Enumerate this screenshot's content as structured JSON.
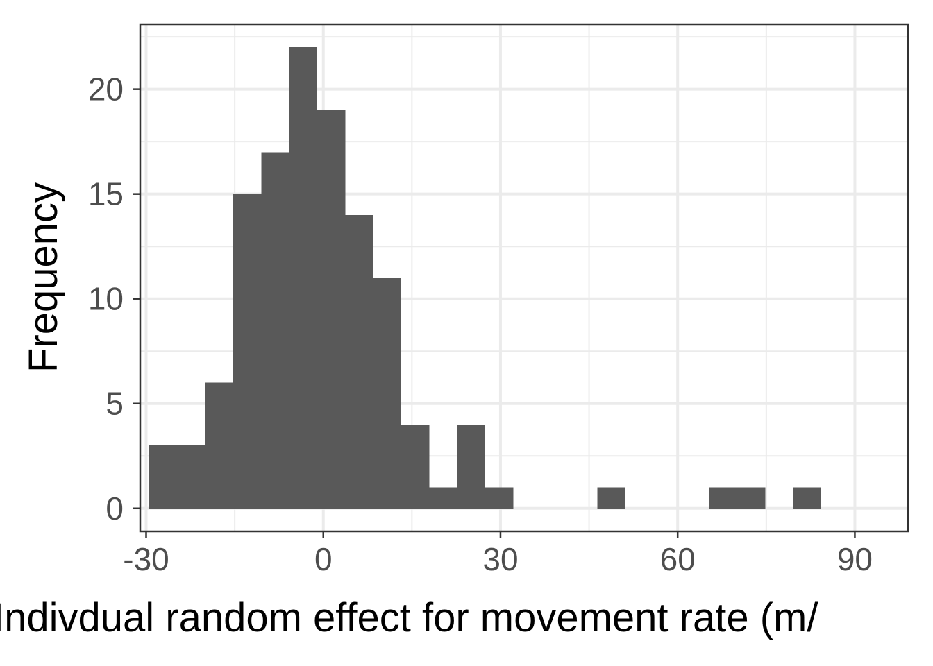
{
  "chart_data": {
    "type": "bar",
    "xlabel": "Indivdual random effect for movement rate (m/",
    "ylabel": "Frequency",
    "xlim": [
      -31,
      99
    ],
    "ylim": [
      -1.1,
      23.1
    ],
    "x_ticks": [
      -30,
      0,
      30,
      60,
      90
    ],
    "x_tick_labels": [
      "-30",
      "0",
      "30",
      "60",
      "90"
    ],
    "y_ticks": [
      0,
      5,
      10,
      15,
      20
    ],
    "y_tick_labels": [
      "0",
      "5",
      "10",
      "15",
      "20"
    ],
    "grid": true,
    "legend": "none",
    "bar_color": "#595959",
    "bin_width": 4.74,
    "bin_start": -29.45,
    "series": [
      {
        "values": [
          3,
          3,
          6,
          15,
          17,
          22,
          19,
          14,
          11,
          4,
          1,
          4,
          1,
          0,
          0,
          0,
          1,
          0,
          0,
          0,
          1,
          1,
          0,
          1
        ]
      }
    ]
  }
}
